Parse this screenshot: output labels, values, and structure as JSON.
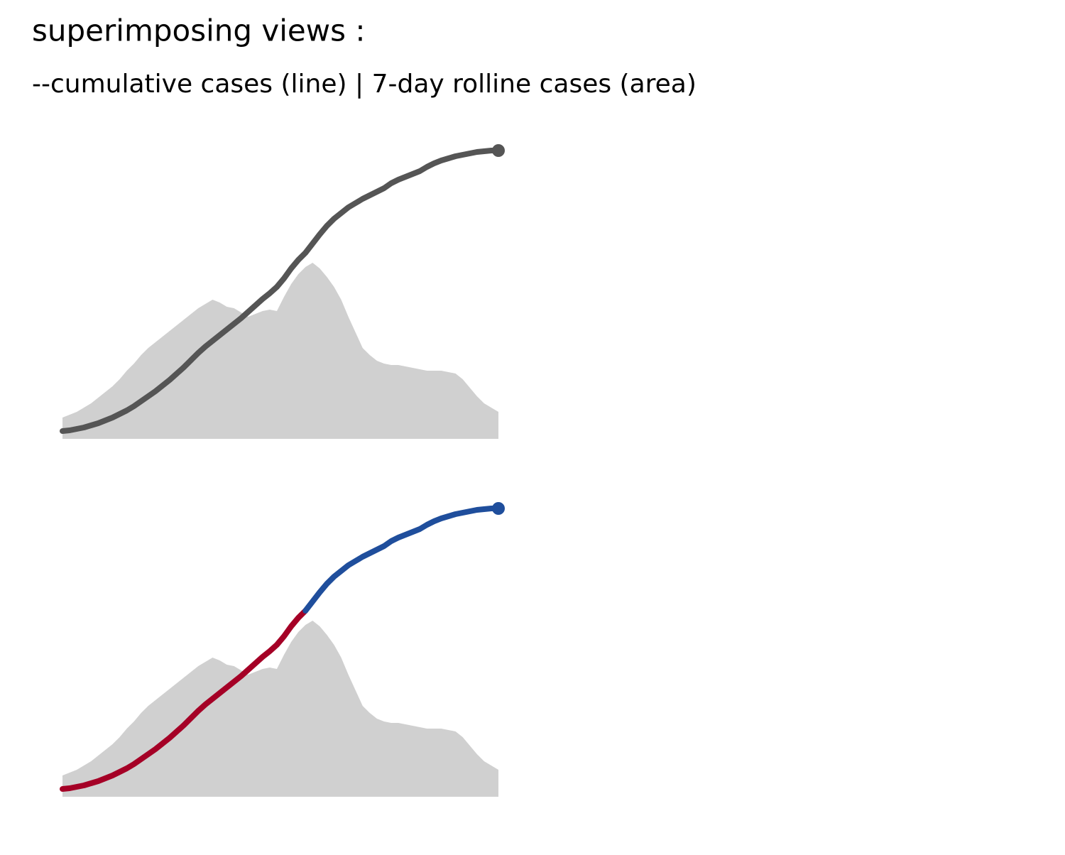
{
  "title": "superimposing views :",
  "subtitle": "--cumulative cases (line) | 7-day rolline cases (area)",
  "chart_data": [
    {
      "type": "area_line",
      "ylim": [
        0,
        420
      ],
      "series": [
        {
          "type": "area",
          "color": "#d0d0d0",
          "values": [
            30,
            34,
            38,
            44,
            50,
            58,
            66,
            74,
            84,
            96,
            106,
            118,
            128,
            136,
            144,
            152,
            160,
            168,
            176,
            184,
            190,
            196,
            192,
            186,
            184,
            178,
            172,
            176,
            180,
            182,
            180,
            200,
            218,
            232,
            242,
            248,
            240,
            228,
            214,
            196,
            172,
            150,
            128,
            118,
            110,
            106,
            104,
            104,
            102,
            100,
            98,
            96,
            96,
            96,
            94,
            92,
            84,
            72,
            60,
            50,
            44,
            38
          ]
        },
        {
          "type": "line",
          "color": "#555555",
          "values": [
            11,
            12,
            14,
            16,
            19,
            22,
            26,
            30,
            35,
            40,
            46,
            53,
            60,
            67,
            75,
            83,
            92,
            101,
            111,
            121,
            130,
            138,
            146,
            154,
            162,
            170,
            179,
            188,
            197,
            205,
            214,
            226,
            240,
            252,
            262,
            275,
            288,
            300,
            310,
            318,
            326,
            332,
            338,
            343,
            348,
            353,
            360,
            365,
            369,
            373,
            377,
            383,
            388,
            392,
            395,
            398,
            400,
            402,
            404,
            405,
            406,
            406
          ]
        }
      ]
    },
    {
      "type": "area_line",
      "ylim": [
        0,
        420
      ],
      "series": [
        {
          "type": "area",
          "color": "#d0d0d0",
          "values": [
            30,
            34,
            38,
            44,
            50,
            58,
            66,
            74,
            84,
            96,
            106,
            118,
            128,
            136,
            144,
            152,
            160,
            168,
            176,
            184,
            190,
            196,
            192,
            186,
            184,
            178,
            172,
            176,
            180,
            182,
            180,
            200,
            218,
            232,
            242,
            248,
            240,
            228,
            214,
            196,
            172,
            150,
            128,
            118,
            110,
            106,
            104,
            104,
            102,
            100,
            98,
            96,
            96,
            96,
            94,
            92,
            84,
            72,
            60,
            50,
            44,
            38
          ]
        },
        {
          "type": "line",
          "color": "#a50026",
          "values": [
            11,
            12,
            14,
            16,
            19,
            22,
            26,
            30,
            35,
            40,
            46,
            53,
            60,
            67,
            75,
            83,
            92,
            101,
            111,
            121,
            130,
            138,
            146,
            154,
            162,
            170,
            179,
            188,
            197,
            205,
            214,
            226,
            240,
            252,
            262,
            null,
            null,
            null,
            null,
            null,
            null,
            null,
            null,
            null,
            null,
            null,
            null,
            null,
            null,
            null,
            null,
            null,
            null,
            null,
            null,
            null,
            null,
            null,
            null,
            null,
            null,
            null
          ]
        },
        {
          "type": "line",
          "color": "#1f4e9c",
          "values": [
            null,
            null,
            null,
            null,
            null,
            null,
            null,
            null,
            null,
            null,
            null,
            null,
            null,
            null,
            null,
            null,
            null,
            null,
            null,
            null,
            null,
            null,
            null,
            null,
            null,
            null,
            null,
            null,
            null,
            null,
            null,
            null,
            null,
            null,
            262,
            275,
            288,
            300,
            310,
            318,
            326,
            332,
            338,
            343,
            348,
            353,
            360,
            365,
            369,
            373,
            377,
            383,
            388,
            392,
            395,
            398,
            400,
            402,
            404,
            405,
            406,
            406
          ]
        }
      ]
    }
  ]
}
